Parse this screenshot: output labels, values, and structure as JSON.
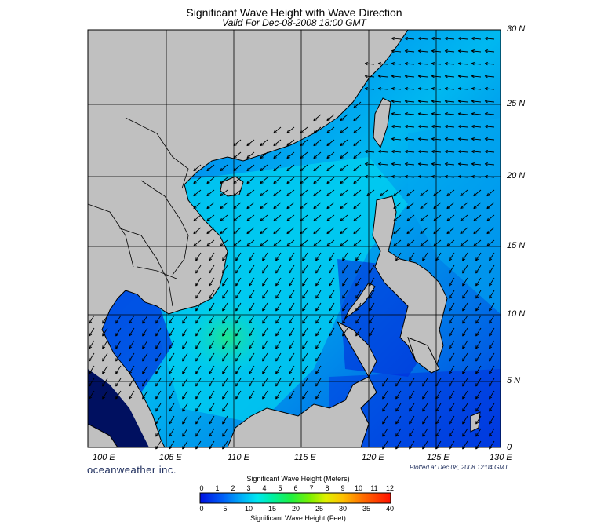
{
  "header": {
    "title": "Significant Wave Height with Wave Direction",
    "subtitle": "Valid For Dec-08-2008 18:00 GMT"
  },
  "map": {
    "region": "South China Sea",
    "lat_labels": [
      "30 N",
      "25 N",
      "20 N",
      "15 N",
      "10 N",
      "5 N",
      "0"
    ],
    "lon_labels": [
      "100 E",
      "105 E",
      "110 E",
      "115 E",
      "120 E",
      "125 E",
      "130 E"
    ],
    "land_color": "#c0c0c0",
    "grid_color": "#000000",
    "arrow_color": "#000000"
  },
  "footer": {
    "brand": "oceanweather inc.",
    "plotted": "Plotted at Dec 08, 2008 12:04 GMT"
  },
  "legend": {
    "title_meters": "Significant Wave Height (Meters)",
    "title_feet": "Significant Wave Height (Feet)",
    "meters_ticks": [
      "0",
      "1",
      "2",
      "3",
      "4",
      "5",
      "6",
      "7",
      "8",
      "9",
      "10",
      "11",
      "12"
    ],
    "feet_ticks": [
      "0",
      "5",
      "10",
      "15",
      "20",
      "25",
      "30",
      "35",
      "40"
    ],
    "gradient_colors": [
      "#0010e0",
      "#0050f0",
      "#0090f8",
      "#00d0f8",
      "#00f0c0",
      "#20f060",
      "#60f010",
      "#c0f000",
      "#ffe000",
      "#ffa000",
      "#ff5000",
      "#ff1000"
    ]
  }
}
